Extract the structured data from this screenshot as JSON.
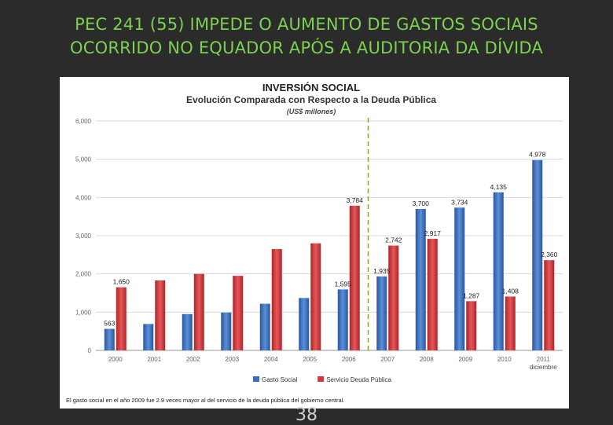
{
  "slide": {
    "title_line1": "PEC 241 (55) IMPEDE O AUMENTO DE GASTOS SOCIAIS",
    "title_line2": "OCORRIDO NO EQUADOR APÓS A AUDITORIA DA DÍVIDA",
    "page_number": "38",
    "title_color": "#7cd14f",
    "background_color": "#2b2b2b"
  },
  "chart_data": {
    "type": "bar",
    "title": "INVERSIÓN SOCIAL",
    "subtitle": "Evolución Comparada con Respecto a la Deuda Pública",
    "unit_label": "(US$ millones)",
    "categories": [
      "2000",
      "2001",
      "2002",
      "2003",
      "2004",
      "2005",
      "2006",
      "2007",
      "2008",
      "2009",
      "2010",
      "2011"
    ],
    "category_note": "diciembre",
    "y_ticks": [
      "6,000",
      "5,000",
      "4,000",
      "3,000",
      "2,000",
      "1,000",
      "0"
    ],
    "ylim": [
      0,
      6000
    ],
    "grid": true,
    "legend_position": "bottom",
    "divider_between": [
      "2006",
      "2007"
    ],
    "series": [
      {
        "name": "Gasto Social",
        "color": "#3b6db7",
        "values": [
          563,
          690,
          950,
          990,
          1220,
          1370,
          1595,
          1935,
          3700,
          3734,
          4135,
          4978
        ],
        "labels": [
          "563",
          "",
          "",
          "",
          "",
          "",
          "1,595",
          "1,935",
          "3,700",
          "3,734",
          "4,135",
          "4,978"
        ]
      },
      {
        "name": "Servicio Deuda Pública",
        "color": "#d0383b",
        "values": [
          1650,
          1830,
          2000,
          1950,
          2650,
          2800,
          3784,
          2742,
          2917,
          1287,
          1408,
          2360
        ],
        "labels": [
          "1,650",
          "",
          "",
          "",
          "",
          "",
          "3,784",
          "2,742",
          "2,917",
          "1,287",
          "1,408",
          "2,360"
        ]
      }
    ],
    "footnote": "El gasto social en el año 2009 fue 2.9 veces mayor al del servicio de la deuda pública del gobierno central."
  }
}
